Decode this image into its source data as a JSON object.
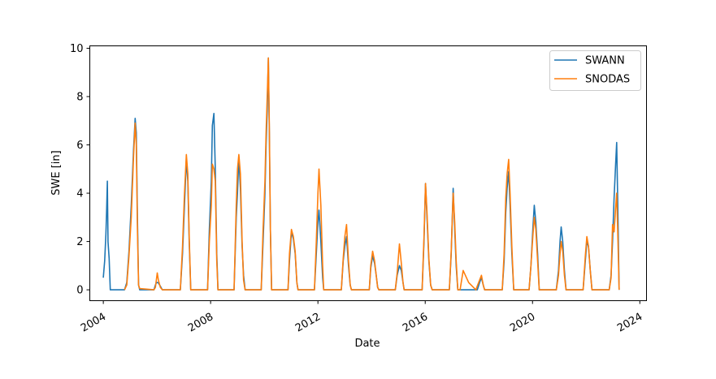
{
  "chart_data": {
    "type": "line",
    "xlabel": "Date",
    "ylabel": "SWE [in]",
    "xlim": [
      "2003-07-01",
      "2024-04-01"
    ],
    "ylim": [
      -0.45,
      10.1
    ],
    "x_ticks": [
      "2004",
      "2008",
      "2012",
      "2016",
      "2020",
      "2024"
    ],
    "y_ticks": [
      0,
      2,
      4,
      6,
      8,
      10
    ],
    "y_tick_labels": [
      "0",
      "2",
      "4",
      "6",
      "8",
      "10"
    ],
    "grid": false,
    "legend": "upper-right",
    "colors": {
      "SWANN": "#1f77b4",
      "SNODAS": "#ff7f0e"
    },
    "series": [
      {
        "name": "SWANN",
        "points": [
          [
            "2004-01-01",
            0.5
          ],
          [
            "2004-01-20",
            1.2
          ],
          [
            "2004-02-05",
            2.3
          ],
          [
            "2004-02-15",
            3.3
          ],
          [
            "2004-02-25",
            4.5
          ],
          [
            "2004-03-05",
            2.0
          ],
          [
            "2004-03-20",
            1.3
          ],
          [
            "2004-04-05",
            0.0
          ],
          [
            "2004-10-15",
            0.0
          ],
          [
            "2004-11-15",
            0.3
          ],
          [
            "2004-12-15",
            1.6
          ],
          [
            "2005-01-15",
            3.5
          ],
          [
            "2005-02-15",
            5.8
          ],
          [
            "2005-03-10",
            7.1
          ],
          [
            "2005-03-25",
            6.5
          ],
          [
            "2005-04-10",
            3.0
          ],
          [
            "2005-04-25",
            0.2
          ],
          [
            "2005-05-10",
            0.0
          ],
          [
            "2005-11-20",
            0.0
          ],
          [
            "2005-12-10",
            0.2
          ],
          [
            "2005-12-25",
            0.3
          ],
          [
            "2006-01-15",
            0.3
          ],
          [
            "2006-02-15",
            0.15
          ],
          [
            "2006-03-15",
            0.0
          ],
          [
            "2006-11-15",
            0.0
          ],
          [
            "2006-12-15",
            1.5
          ],
          [
            "2007-01-10",
            3.5
          ],
          [
            "2007-02-05",
            5.4
          ],
          [
            "2007-02-25",
            4.5
          ],
          [
            "2007-03-15",
            2.0
          ],
          [
            "2007-04-05",
            0.0
          ],
          [
            "2007-11-20",
            0.0
          ],
          [
            "2007-12-15",
            2.5
          ],
          [
            "2008-01-10",
            4.5
          ],
          [
            "2008-01-25",
            6.8
          ],
          [
            "2008-02-15",
            7.3
          ],
          [
            "2008-03-05",
            5.0
          ],
          [
            "2008-03-25",
            1.5
          ],
          [
            "2008-04-10",
            0.0
          ],
          [
            "2008-11-15",
            0.0
          ],
          [
            "2008-12-15",
            3.0
          ],
          [
            "2009-01-01",
            4.0
          ],
          [
            "2009-01-20",
            5.5
          ],
          [
            "2009-02-10",
            4.2
          ],
          [
            "2009-03-05",
            1.8
          ],
          [
            "2009-03-25",
            0.6
          ],
          [
            "2009-04-15",
            0.0
          ],
          [
            "2009-11-20",
            0.0
          ],
          [
            "2009-12-15",
            2.0
          ],
          [
            "2010-01-10",
            4.0
          ],
          [
            "2010-01-25",
            6.0
          ],
          [
            "2010-02-10",
            7.4
          ],
          [
            "2010-02-25",
            9.6
          ],
          [
            "2010-03-10",
            6.5
          ],
          [
            "2010-03-25",
            2.5
          ],
          [
            "2010-04-10",
            0.0
          ],
          [
            "2010-11-20",
            0.0
          ],
          [
            "2010-12-10",
            1.2
          ],
          [
            "2011-01-05",
            2.4
          ],
          [
            "2011-02-01",
            2.1
          ],
          [
            "2011-02-25",
            1.5
          ],
          [
            "2011-03-20",
            0.3
          ],
          [
            "2011-04-05",
            0.0
          ],
          [
            "2011-11-15",
            0.0
          ],
          [
            "2011-12-10",
            1.5
          ],
          [
            "2012-01-01",
            2.8
          ],
          [
            "2012-01-15",
            3.3
          ],
          [
            "2012-02-10",
            2.0
          ],
          [
            "2012-03-05",
            0.5
          ],
          [
            "2012-03-20",
            0.0
          ],
          [
            "2012-11-15",
            0.0
          ],
          [
            "2012-12-10",
            1.2
          ],
          [
            "2013-01-01",
            1.8
          ],
          [
            "2013-01-25",
            2.2
          ],
          [
            "2013-02-20",
            1.0
          ],
          [
            "2013-03-15",
            0.2
          ],
          [
            "2013-04-01",
            0.0
          ],
          [
            "2013-12-01",
            0.0
          ],
          [
            "2013-12-20",
            0.9
          ],
          [
            "2014-01-15",
            1.4
          ],
          [
            "2014-02-10",
            1.1
          ],
          [
            "2014-03-05",
            0.6
          ],
          [
            "2014-03-25",
            0.1
          ],
          [
            "2014-04-10",
            0.0
          ],
          [
            "2014-11-20",
            0.0
          ],
          [
            "2014-12-15",
            0.6
          ],
          [
            "2015-01-15",
            1.0
          ],
          [
            "2015-02-10",
            0.8
          ],
          [
            "2015-03-05",
            0.3
          ],
          [
            "2015-03-20",
            0.0
          ],
          [
            "2015-11-20",
            0.0
          ],
          [
            "2015-12-15",
            2.0
          ],
          [
            "2016-01-05",
            4.4
          ],
          [
            "2016-01-25",
            3.0
          ],
          [
            "2016-02-20",
            1.2
          ],
          [
            "2016-03-15",
            0.2
          ],
          [
            "2016-04-05",
            0.0
          ],
          [
            "2016-11-25",
            0.0
          ],
          [
            "2016-12-20",
            1.5
          ],
          [
            "2017-01-15",
            4.2
          ],
          [
            "2017-02-05",
            2.5
          ],
          [
            "2017-02-25",
            1.0
          ],
          [
            "2017-03-20",
            0.0
          ],
          [
            "2017-12-10",
            0.0
          ],
          [
            "2018-01-10",
            0.3
          ],
          [
            "2018-02-05",
            0.5
          ],
          [
            "2018-03-01",
            0.2
          ],
          [
            "2018-03-20",
            0.0
          ],
          [
            "2018-11-15",
            0.0
          ],
          [
            "2018-12-10",
            1.2
          ],
          [
            "2019-01-01",
            3.2
          ],
          [
            "2019-01-20",
            4.2
          ],
          [
            "2019-02-10",
            4.9
          ],
          [
            "2019-03-01",
            3.5
          ],
          [
            "2019-03-25",
            1.5
          ],
          [
            "2019-04-20",
            0.0
          ],
          [
            "2019-11-15",
            0.0
          ],
          [
            "2019-12-10",
            1.0
          ],
          [
            "2020-01-05",
            2.5
          ],
          [
            "2020-01-25",
            3.5
          ],
          [
            "2020-02-15",
            2.8
          ],
          [
            "2020-03-10",
            1.5
          ],
          [
            "2020-04-01",
            0.0
          ],
          [
            "2020-11-20",
            0.0
          ],
          [
            "2020-12-20",
            0.8
          ],
          [
            "2021-01-10",
            2.0
          ],
          [
            "2021-01-25",
            2.6
          ],
          [
            "2021-02-15",
            2.0
          ],
          [
            "2021-03-10",
            0.8
          ],
          [
            "2021-04-01",
            0.0
          ],
          [
            "2021-11-20",
            0.0
          ],
          [
            "2021-12-20",
            1.2
          ],
          [
            "2022-01-10",
            2.0
          ],
          [
            "2022-02-01",
            1.8
          ],
          [
            "2022-02-25",
            0.8
          ],
          [
            "2022-03-20",
            0.0
          ],
          [
            "2022-11-10",
            0.0
          ],
          [
            "2022-12-05",
            0.6
          ],
          [
            "2022-12-25",
            2.0
          ],
          [
            "2023-01-15",
            3.8
          ],
          [
            "2023-02-05",
            5.2
          ],
          [
            "2023-02-20",
            6.1
          ],
          [
            "2023-03-10",
            3.0
          ],
          [
            "2023-03-25",
            0.0
          ]
        ]
      },
      {
        "name": "SNODAS",
        "points": [
          [
            "2004-10-15",
            0.0
          ],
          [
            "2004-11-15",
            0.2
          ],
          [
            "2004-12-15",
            1.4
          ],
          [
            "2005-01-15",
            3.0
          ],
          [
            "2005-02-15",
            5.5
          ],
          [
            "2005-03-10",
            6.9
          ],
          [
            "2005-03-25",
            6.0
          ],
          [
            "2005-04-10",
            2.5
          ],
          [
            "2005-04-25",
            0.2
          ],
          [
            "2005-05-10",
            0.05
          ],
          [
            "2005-11-20",
            0.0
          ],
          [
            "2005-12-10",
            0.1
          ],
          [
            "2006-01-05",
            0.7
          ],
          [
            "2006-01-20",
            0.4
          ],
          [
            "2006-02-15",
            0.1
          ],
          [
            "2006-03-15",
            0.0
          ],
          [
            "2006-11-15",
            0.0
          ],
          [
            "2006-12-15",
            1.8
          ],
          [
            "2007-01-10",
            4.0
          ],
          [
            "2007-02-05",
            5.6
          ],
          [
            "2007-02-25",
            4.8
          ],
          [
            "2007-03-15",
            2.2
          ],
          [
            "2007-04-05",
            0.0
          ],
          [
            "2007-11-20",
            0.0
          ],
          [
            "2007-12-15",
            2.0
          ],
          [
            "2008-01-10",
            3.5
          ],
          [
            "2008-01-25",
            5.2
          ],
          [
            "2008-02-15",
            5.0
          ],
          [
            "2008-03-05",
            4.5
          ],
          [
            "2008-03-25",
            1.2
          ],
          [
            "2008-04-10",
            0.0
          ],
          [
            "2008-11-15",
            0.0
          ],
          [
            "2008-12-15",
            3.5
          ],
          [
            "2009-01-01",
            5.0
          ],
          [
            "2009-01-20",
            5.6
          ],
          [
            "2009-02-10",
            4.8
          ],
          [
            "2009-03-05",
            2.0
          ],
          [
            "2009-03-25",
            0.4
          ],
          [
            "2009-04-15",
            0.0
          ],
          [
            "2009-11-20",
            0.0
          ],
          [
            "2009-12-15",
            2.5
          ],
          [
            "2010-01-10",
            4.5
          ],
          [
            "2010-01-25",
            6.5
          ],
          [
            "2010-02-10",
            8.0
          ],
          [
            "2010-02-25",
            9.6
          ],
          [
            "2010-03-10",
            6.8
          ],
          [
            "2010-03-25",
            2.5
          ],
          [
            "2010-04-10",
            0.0
          ],
          [
            "2010-11-20",
            0.0
          ],
          [
            "2010-12-10",
            1.5
          ],
          [
            "2011-01-05",
            2.5
          ],
          [
            "2011-02-01",
            2.2
          ],
          [
            "2011-02-25",
            1.6
          ],
          [
            "2011-03-20",
            0.3
          ],
          [
            "2011-04-05",
            0.0
          ],
          [
            "2011-11-15",
            0.0
          ],
          [
            "2011-12-10",
            2.0
          ],
          [
            "2012-01-01",
            4.0
          ],
          [
            "2012-01-15",
            5.0
          ],
          [
            "2012-02-10",
            3.5
          ],
          [
            "2012-03-05",
            1.0
          ],
          [
            "2012-03-20",
            0.0
          ],
          [
            "2012-11-15",
            0.0
          ],
          [
            "2012-12-10",
            1.3
          ],
          [
            "2013-01-01",
            2.2
          ],
          [
            "2013-01-25",
            2.7
          ],
          [
            "2013-02-20",
            1.2
          ],
          [
            "2013-03-15",
            0.2
          ],
          [
            "2013-04-01",
            0.0
          ],
          [
            "2013-12-01",
            0.0
          ],
          [
            "2013-12-20",
            1.0
          ],
          [
            "2014-01-15",
            1.6
          ],
          [
            "2014-02-10",
            1.2
          ],
          [
            "2014-03-05",
            0.6
          ],
          [
            "2014-03-25",
            0.1
          ],
          [
            "2014-04-10",
            0.0
          ],
          [
            "2014-11-20",
            0.0
          ],
          [
            "2014-12-15",
            0.7
          ],
          [
            "2015-01-15",
            1.9
          ],
          [
            "2015-02-10",
            1.1
          ],
          [
            "2015-03-05",
            0.3
          ],
          [
            "2015-03-20",
            0.0
          ],
          [
            "2015-11-20",
            0.0
          ],
          [
            "2015-12-15",
            2.2
          ],
          [
            "2016-01-05",
            4.4
          ],
          [
            "2016-01-25",
            3.2
          ],
          [
            "2016-02-20",
            1.3
          ],
          [
            "2016-03-15",
            0.2
          ],
          [
            "2016-04-05",
            0.0
          ],
          [
            "2016-11-25",
            0.0
          ],
          [
            "2016-12-20",
            1.6
          ],
          [
            "2017-01-15",
            4.0
          ],
          [
            "2017-02-05",
            2.8
          ],
          [
            "2017-02-25",
            1.2
          ],
          [
            "2017-03-20",
            0.0
          ],
          [
            "2017-04-20",
            0.0
          ],
          [
            "2017-06-01",
            0.8
          ],
          [
            "2017-08-15",
            0.3
          ],
          [
            "2017-11-20",
            0.0
          ],
          [
            "2018-01-10",
            0.4
          ],
          [
            "2018-02-05",
            0.6
          ],
          [
            "2018-03-01",
            0.2
          ],
          [
            "2018-03-20",
            0.0
          ],
          [
            "2018-11-15",
            0.0
          ],
          [
            "2018-12-10",
            1.5
          ],
          [
            "2019-01-01",
            3.8
          ],
          [
            "2019-01-20",
            4.8
          ],
          [
            "2019-02-10",
            5.4
          ],
          [
            "2019-03-01",
            4.0
          ],
          [
            "2019-03-25",
            1.8
          ],
          [
            "2019-04-20",
            0.0
          ],
          [
            "2019-11-15",
            0.0
          ],
          [
            "2019-12-10",
            1.0
          ],
          [
            "2020-01-05",
            2.2
          ],
          [
            "2020-01-25",
            3.0
          ],
          [
            "2020-02-15",
            2.5
          ],
          [
            "2020-03-10",
            1.2
          ],
          [
            "2020-04-01",
            0.0
          ],
          [
            "2020-11-20",
            0.0
          ],
          [
            "2020-12-20",
            0.6
          ],
          [
            "2021-01-10",
            1.5
          ],
          [
            "2021-01-25",
            2.0
          ],
          [
            "2021-02-15",
            1.6
          ],
          [
            "2021-03-10",
            0.6
          ],
          [
            "2021-04-01",
            0.0
          ],
          [
            "2021-11-20",
            0.0
          ],
          [
            "2021-12-20",
            1.4
          ],
          [
            "2022-01-10",
            2.2
          ],
          [
            "2022-02-01",
            1.8
          ],
          [
            "2022-02-25",
            0.8
          ],
          [
            "2022-03-20",
            0.0
          ],
          [
            "2022-11-10",
            0.0
          ],
          [
            "2022-12-05",
            0.5
          ],
          [
            "2022-12-25",
            2.7
          ],
          [
            "2023-01-15",
            2.4
          ],
          [
            "2023-02-05",
            3.4
          ],
          [
            "2023-02-20",
            4.0
          ],
          [
            "2023-03-10",
            2.0
          ],
          [
            "2023-03-25",
            0.0
          ]
        ]
      }
    ]
  }
}
